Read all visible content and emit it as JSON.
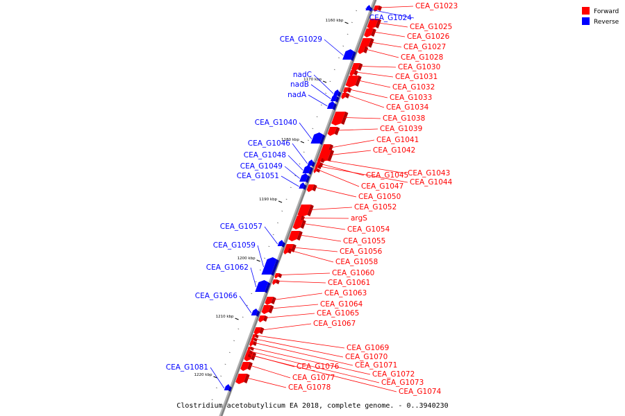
{
  "legend": {
    "forward_label": "Forward",
    "reverse_label": "Reverse"
  },
  "colors": {
    "forward": "#ff0000",
    "reverse": "#0000ff",
    "backbone": "#808080"
  },
  "caption": "Clostridium acetobutylicum EA 2018, complete genome. - 0..3940230",
  "ticks": [
    {
      "kbp": 1160,
      "label": "1160 kbp"
    },
    {
      "kbp": 1170,
      "label": "1170 kbp"
    },
    {
      "kbp": 1180,
      "label": "1180 kbp"
    },
    {
      "kbp": 1190,
      "label": "1190 kbp"
    },
    {
      "kbp": 1200,
      "label": "1200 kbp"
    },
    {
      "kbp": 1210,
      "label": "1210 kbp"
    },
    {
      "kbp": 1220,
      "label": "1220 kbp"
    }
  ],
  "genes": [
    {
      "name": "CEA_G1023",
      "strand": "forward"
    },
    {
      "name": "CEA_G1024",
      "strand": "reverse"
    },
    {
      "name": "CEA_G1025",
      "strand": "forward"
    },
    {
      "name": "CEA_G1026",
      "strand": "forward"
    },
    {
      "name": "CEA_G1027",
      "strand": "forward"
    },
    {
      "name": "CEA_G1028",
      "strand": "forward"
    },
    {
      "name": "CEA_G1029",
      "strand": "reverse"
    },
    {
      "name": "CEA_G1030",
      "strand": "forward"
    },
    {
      "name": "CEA_G1031",
      "strand": "forward"
    },
    {
      "name": "CEA_G1032",
      "strand": "forward"
    },
    {
      "name": "nadC",
      "strand": "reverse"
    },
    {
      "name": "nadB",
      "strand": "reverse"
    },
    {
      "name": "CEA_G1033",
      "strand": "forward"
    },
    {
      "name": "nadA",
      "strand": "reverse"
    },
    {
      "name": "CEA_G1034",
      "strand": "forward"
    },
    {
      "name": "CEA_G1038",
      "strand": "forward"
    },
    {
      "name": "CEA_G1040",
      "strand": "reverse"
    },
    {
      "name": "CEA_G1039",
      "strand": "forward"
    },
    {
      "name": "CEA_G1041",
      "strand": "forward"
    },
    {
      "name": "CEA_G1046",
      "strand": "reverse"
    },
    {
      "name": "CEA_G1042",
      "strand": "forward"
    },
    {
      "name": "CEA_G1048",
      "strand": "reverse"
    },
    {
      "name": "CEA_G1049",
      "strand": "reverse"
    },
    {
      "name": "CEA_G1043",
      "strand": "forward"
    },
    {
      "name": "CEA_G1051",
      "strand": "reverse"
    },
    {
      "name": "CEA_G1045",
      "strand": "forward"
    },
    {
      "name": "CEA_G1044",
      "strand": "forward"
    },
    {
      "name": "CEA_G1047",
      "strand": "forward"
    },
    {
      "name": "CEA_G1050",
      "strand": "forward"
    },
    {
      "name": "CEA_G1052",
      "strand": "forward"
    },
    {
      "name": "argS",
      "strand": "forward"
    },
    {
      "name": "CEA_G1054",
      "strand": "forward"
    },
    {
      "name": "CEA_G1057",
      "strand": "reverse"
    },
    {
      "name": "CEA_G1055",
      "strand": "forward"
    },
    {
      "name": "CEA_G1059",
      "strand": "reverse"
    },
    {
      "name": "CEA_G1056",
      "strand": "forward"
    },
    {
      "name": "CEA_G1058",
      "strand": "forward"
    },
    {
      "name": "CEA_G1062",
      "strand": "reverse"
    },
    {
      "name": "CEA_G1060",
      "strand": "forward"
    },
    {
      "name": "CEA_G1061",
      "strand": "forward"
    },
    {
      "name": "CEA_G1063",
      "strand": "forward"
    },
    {
      "name": "CEA_G1066",
      "strand": "reverse"
    },
    {
      "name": "CEA_G1064",
      "strand": "forward"
    },
    {
      "name": "CEA_G1065",
      "strand": "forward"
    },
    {
      "name": "CEA_G1067",
      "strand": "forward"
    },
    {
      "name": "CEA_G1069",
      "strand": "forward"
    },
    {
      "name": "CEA_G1070",
      "strand": "forward"
    },
    {
      "name": "CEA_G1071",
      "strand": "forward"
    },
    {
      "name": "CEA_G1076",
      "strand": "forward"
    },
    {
      "name": "CEA_G1081",
      "strand": "reverse"
    },
    {
      "name": "CEA_G1072",
      "strand": "forward"
    },
    {
      "name": "CEA_G1077",
      "strand": "forward"
    },
    {
      "name": "CEA_G1073",
      "strand": "forward"
    },
    {
      "name": "CEA_G1078",
      "strand": "forward"
    },
    {
      "name": "CEA_G1074",
      "strand": "forward"
    }
  ]
}
